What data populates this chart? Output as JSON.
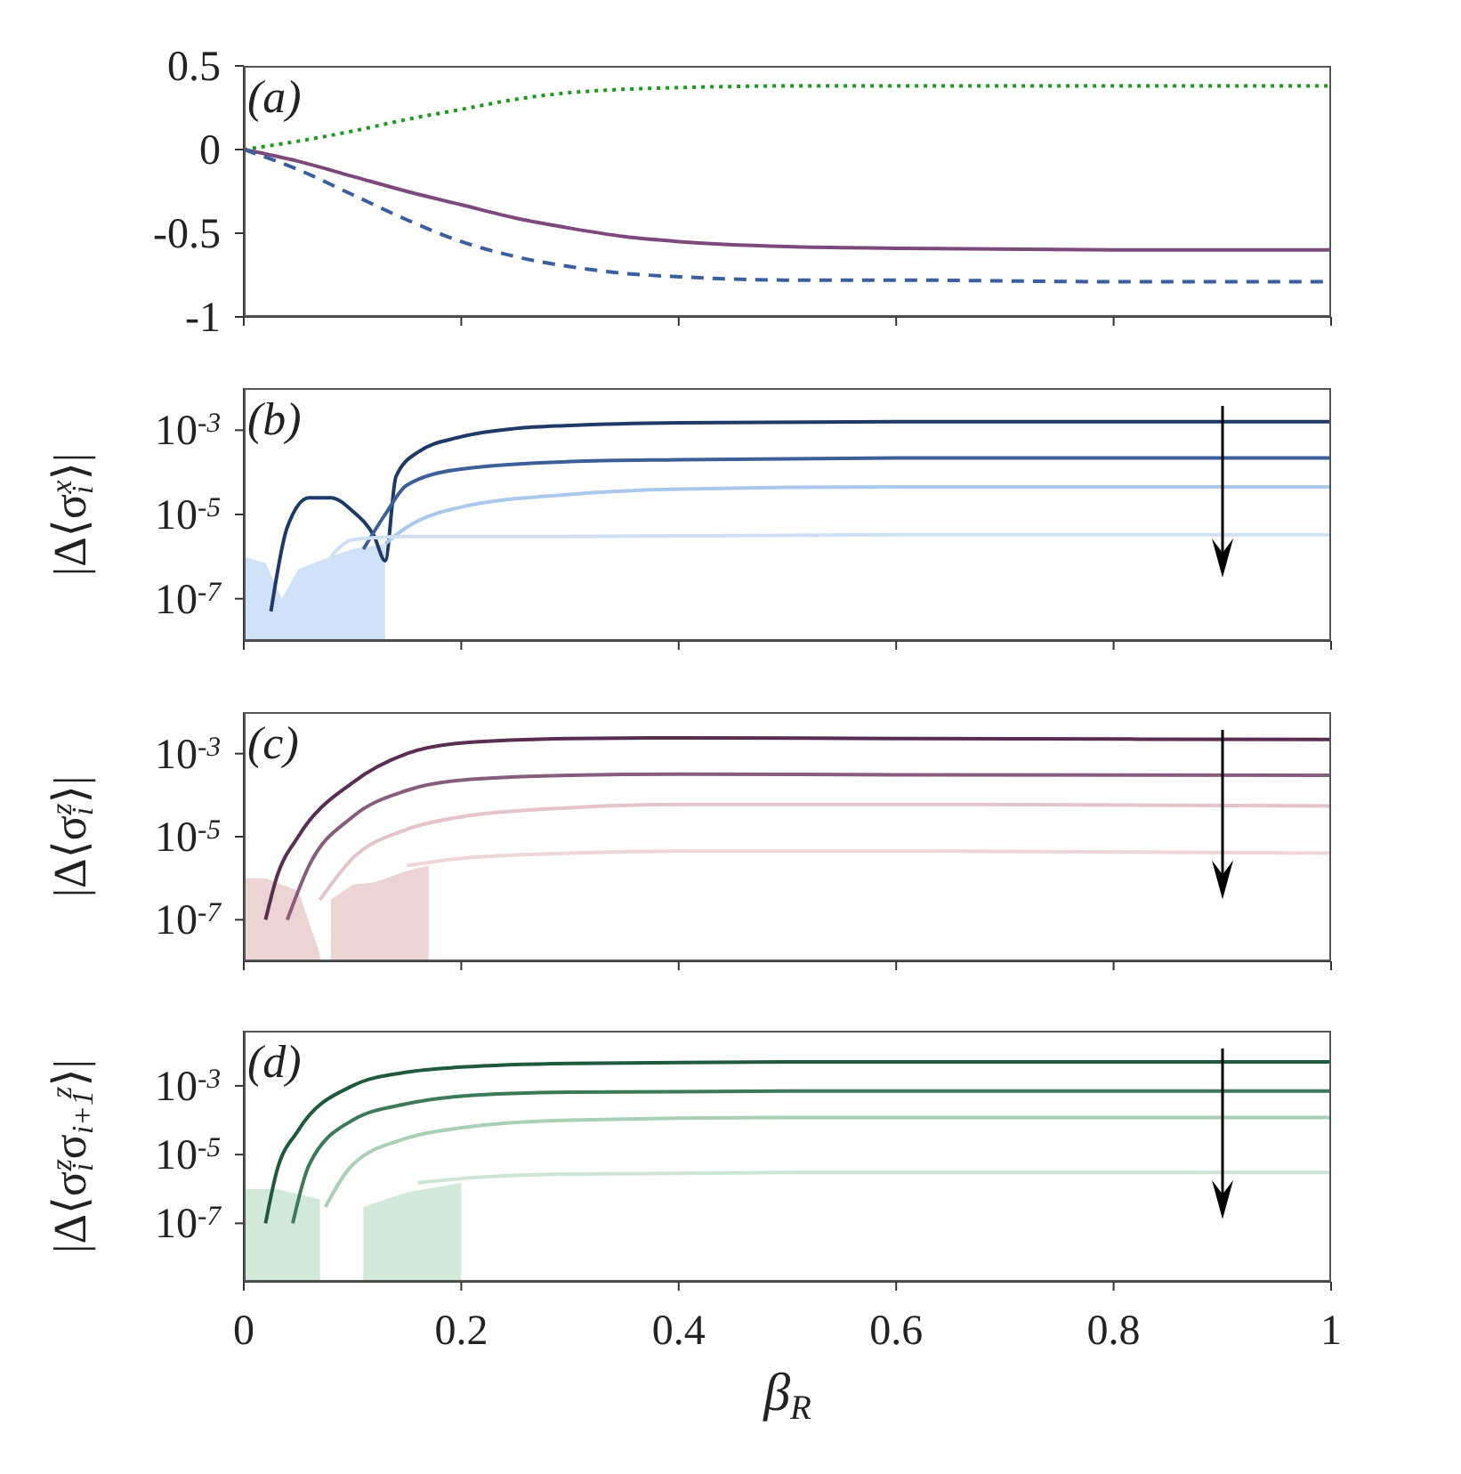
{
  "chart_data": [
    {
      "type": "line",
      "annotations": [
        "(a)"
      ],
      "xlim": [
        0,
        1
      ],
      "xticks": [
        0,
        0.2,
        0.4,
        0.6,
        0.8,
        1
      ],
      "ylim": [
        -1,
        0.5
      ],
      "yticks": [
        -1,
        -0.5,
        0,
        0.5
      ],
      "tick_labels": "y",
      "grid": false,
      "series": [
        {
          "color": "#1a9a1a",
          "line_style": "dotted",
          "x": [
            0,
            0.05,
            0.1,
            0.15,
            0.2,
            0.25,
            0.3,
            0.35,
            0.4,
            0.5,
            0.6,
            0.8,
            1
          ],
          "values": [
            0,
            0.05,
            0.11,
            0.18,
            0.24,
            0.3,
            0.34,
            0.36,
            0.37,
            0.38,
            0.38,
            0.38,
            0.38
          ]
        },
        {
          "color": "#7b4a7b",
          "line_style": "solid",
          "x": [
            0,
            0.05,
            0.1,
            0.15,
            0.2,
            0.25,
            0.3,
            0.35,
            0.4,
            0.5,
            0.6,
            0.8,
            1
          ],
          "values": [
            0,
            -0.07,
            -0.16,
            -0.25,
            -0.33,
            -0.41,
            -0.47,
            -0.52,
            -0.55,
            -0.58,
            -0.59,
            -0.6,
            -0.6
          ]
        },
        {
          "color": "#3a5fa0",
          "line_style": "dashed",
          "x": [
            0,
            0.05,
            0.1,
            0.15,
            0.2,
            0.25,
            0.3,
            0.35,
            0.4,
            0.5,
            0.6,
            0.8,
            1
          ],
          "values": [
            0,
            -0.12,
            -0.27,
            -0.42,
            -0.55,
            -0.64,
            -0.7,
            -0.74,
            -0.76,
            -0.78,
            -0.78,
            -0.79,
            -0.79
          ]
        }
      ]
    },
    {
      "type": "line",
      "annotations": [
        "(b)"
      ],
      "ylabel": "|Δ⟨σ$_{i}$$^{x}$⟩|",
      "log": true,
      "xlim": [
        0,
        1
      ],
      "xticks": [
        0,
        0.2,
        0.4,
        0.6,
        0.8,
        1
      ],
      "ylim": [
        1e-08,
        0.01
      ],
      "yticks": [
        {
          "value": 0.001,
          "label": "10$^{-3}$"
        },
        {
          "value": 1e-05,
          "label": "10$^{-5}$"
        },
        {
          "value": 1e-07,
          "label": "10$^{-7}$"
        }
      ],
      "tick_labels": "y",
      "grid": false,
      "series": [
        {
          "type": "area",
          "color": "#cfe2f7",
          "x": [
            0,
            0.02,
            0.035,
            0.05,
            0.08,
            0.1,
            0.13
          ],
          "values": [
            1e-06,
            7e-07,
            1e-07,
            5e-07,
            1e-06,
            1.5e-06,
            2e-06
          ]
        },
        {
          "color": "#1f3a66",
          "x": [
            0.025,
            0.04,
            0.06,
            0.08,
            0.1,
            0.12,
            0.13,
            0.14,
            0.16,
            0.2,
            0.25,
            0.3,
            0.4,
            0.6,
            1
          ],
          "values": [
            5e-08,
            5e-06,
            2.5e-05,
            2.5e-05,
            1.2e-05,
            3e-06,
            8e-07,
            8e-05,
            0.0003,
            0.0007,
            0.0011,
            0.0013,
            0.0015,
            0.0016,
            0.0016
          ]
        },
        {
          "color": "#3d5f99",
          "x": [
            0.11,
            0.13,
            0.15,
            0.2,
            0.3,
            0.4,
            0.6,
            1
          ],
          "values": [
            1.5e-06,
            1e-05,
            5e-05,
            0.00012,
            0.00018,
            0.0002,
            0.00022,
            0.00022
          ]
        },
        {
          "color": "#a9c8ec",
          "x": [
            0.13,
            0.15,
            0.2,
            0.3,
            0.4,
            0.6,
            1
          ],
          "values": [
            2e-06,
            5e-06,
            1.5e-05,
            3e-05,
            4e-05,
            4.5e-05,
            4.5e-05
          ]
        },
        {
          "color": "#cfe0f5",
          "x": [
            0.08,
            0.1,
            0.15,
            0.3,
            0.6,
            1
          ],
          "values": [
            1e-06,
            2.5e-06,
            3e-06,
            3e-06,
            3.3e-06,
            3.3e-06
          ]
        }
      ]
    },
    {
      "type": "line",
      "annotations": [
        "(c)"
      ],
      "ylabel": "|Δ⟨σ$_{i}$$^{z}$⟩|",
      "log": true,
      "xlim": [
        0,
        1
      ],
      "xticks": [
        0,
        0.2,
        0.4,
        0.6,
        0.8,
        1
      ],
      "ylim": [
        1e-08,
        0.01
      ],
      "yticks": [
        {
          "value": 0.001,
          "label": "10$^{-3}$"
        },
        {
          "value": 1e-05,
          "label": "10$^{-5}$"
        },
        {
          "value": 1e-07,
          "label": "10$^{-7}$"
        }
      ],
      "tick_labels": "y",
      "grid": false,
      "series": [
        {
          "type": "area",
          "color": "#ecd4d3",
          "x": [
            0,
            0.02,
            0.05,
            0.07,
            0.075,
            0.08,
            0.1,
            0.12,
            0.15,
            0.17
          ],
          "values": [
            1e-06,
            1e-06,
            5e-07,
            1.5e-08,
            null,
            3e-07,
            7e-07,
            8e-07,
            1.5e-06,
            2e-06
          ]
        },
        {
          "color": "#5a2d52",
          "x": [
            0.02,
            0.03,
            0.05,
            0.1,
            0.15,
            0.2,
            0.3,
            0.4,
            0.6,
            1
          ],
          "values": [
            1e-07,
            1e-06,
            1e-05,
            0.0002,
            0.001,
            0.0018,
            0.0023,
            0.0024,
            0.0023,
            0.0022
          ]
        },
        {
          "color": "#875d7e",
          "x": [
            0.04,
            0.06,
            0.1,
            0.15,
            0.2,
            0.3,
            0.4,
            0.6,
            1
          ],
          "values": [
            1e-07,
            2e-06,
            3e-05,
            0.00013,
            0.00023,
            0.0003,
            0.00032,
            0.00031,
            0.0003
          ]
        },
        {
          "color": "#e4c3c9",
          "x": [
            0.07,
            0.1,
            0.15,
            0.2,
            0.3,
            0.4,
            0.6,
            1
          ],
          "values": [
            3e-07,
            3e-06,
            1.5e-05,
            3e-05,
            5e-05,
            6e-05,
            6e-05,
            5.5e-05
          ]
        },
        {
          "color": "#efd6d8",
          "x": [
            0.15,
            0.2,
            0.3,
            0.4,
            0.6,
            1
          ],
          "values": [
            2e-06,
            3e-06,
            4e-06,
            4.5e-06,
            4.5e-06,
            4e-06
          ]
        }
      ]
    },
    {
      "type": "line",
      "annotations": [
        "(d)"
      ],
      "xlabel": "β$_{R}$",
      "ylabel": "|Δ⟨σ$_{i}$$^{z}$σ$_{i+1}$$^{z}$⟩|",
      "log": true,
      "xlim": [
        0,
        1
      ],
      "xticks": [
        0,
        0.2,
        0.4,
        0.6,
        0.8,
        1
      ],
      "ylim": [
        2e-09,
        0.04
      ],
      "yticks": [
        {
          "value": 0.001,
          "label": "10$^{-3}$"
        },
        {
          "value": 1e-05,
          "label": "10$^{-5}$"
        },
        {
          "value": 1e-07,
          "label": "10$^{-7}$"
        }
      ],
      "grid": false,
      "series": [
        {
          "type": "area",
          "color": "#d2e8d8",
          "x": [
            0,
            0.03,
            0.07,
            0.1,
            0.11,
            0.15,
            0.2
          ],
          "values": [
            1e-06,
            1e-06,
            5e-07,
            null,
            3e-07,
            8e-07,
            1.5e-06
          ]
        },
        {
          "color": "#1f5a3a",
          "x": [
            0.02,
            0.03,
            0.05,
            0.1,
            0.15,
            0.2,
            0.3,
            0.5,
            1
          ],
          "values": [
            1e-07,
            3e-06,
            5e-05,
            0.001,
            0.0025,
            0.0035,
            0.0045,
            0.005,
            0.005
          ]
        },
        {
          "color": "#3d7a57",
          "x": [
            0.045,
            0.06,
            0.1,
            0.15,
            0.2,
            0.3,
            0.5,
            1
          ],
          "values": [
            1e-07,
            5e-06,
            0.0001,
            0.0003,
            0.0005,
            0.00065,
            0.0007,
            0.0007
          ]
        },
        {
          "color": "#a8d0b4",
          "x": [
            0.075,
            0.1,
            0.15,
            0.2,
            0.3,
            0.5,
            1
          ],
          "values": [
            3e-07,
            5e-06,
            3e-05,
            6e-05,
            0.0001,
            0.00012,
            0.00012
          ]
        },
        {
          "color": "#cde5d3",
          "x": [
            0.16,
            0.2,
            0.3,
            0.5,
            1
          ],
          "values": [
            1.5e-06,
            2e-06,
            2.7e-06,
            3e-06,
            3e-06
          ]
        }
      ]
    }
  ]
}
